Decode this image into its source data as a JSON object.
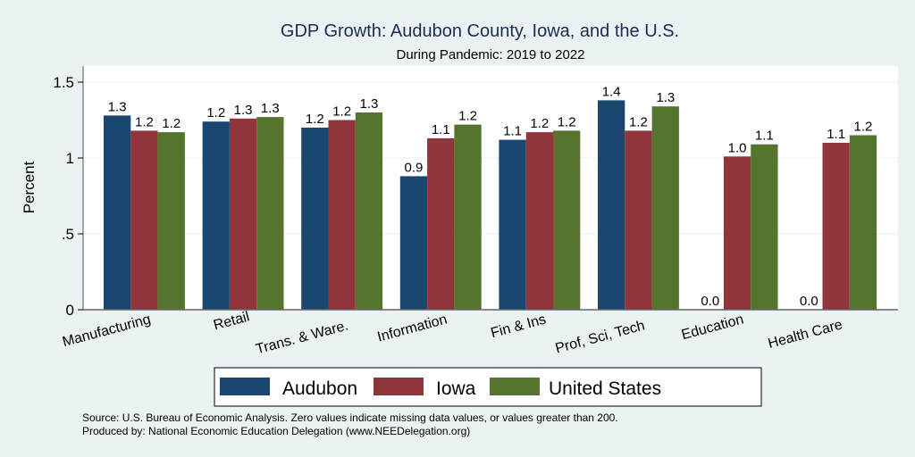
{
  "chart_data": {
    "type": "bar",
    "title": "GDP Growth: Audubon County, Iowa, and the U.S.",
    "subtitle": "During Pandemic: 2019 to 2022",
    "xlabel": "",
    "ylabel": "Percent",
    "ylim": [
      0,
      1.6
    ],
    "yticks": [
      0,
      0.5,
      1,
      1.5
    ],
    "ytick_labels": [
      "0",
      ".5",
      "1",
      "1.5"
    ],
    "grid": true,
    "legend_position": "bottom",
    "categories": [
      "Manufacturing",
      "Retail",
      "Trans. & Ware.",
      "Information",
      "Fin & Ins",
      "Prof, Sci, Tech",
      "Education",
      "Health Care"
    ],
    "series": [
      {
        "name": "Audubon",
        "color": "#1a476f",
        "values": [
          1.28,
          1.24,
          1.2,
          0.88,
          1.12,
          1.38,
          0.0,
          0.0
        ],
        "labels": [
          "1.3",
          "1.2",
          "1.2",
          "0.9",
          "1.1",
          "1.4",
          "0.0",
          "0.0"
        ]
      },
      {
        "name": "Iowa",
        "color": "#90353b",
        "values": [
          1.18,
          1.26,
          1.25,
          1.13,
          1.17,
          1.18,
          1.01,
          1.1
        ],
        "labels": [
          "1.2",
          "1.3",
          "1.2",
          "1.1",
          "1.2",
          "1.2",
          "1.0",
          "1.1"
        ]
      },
      {
        "name": "United States",
        "color": "#55752f",
        "values": [
          1.17,
          1.27,
          1.3,
          1.22,
          1.18,
          1.34,
          1.09,
          1.15
        ],
        "labels": [
          "1.2",
          "1.3",
          "1.3",
          "1.2",
          "1.2",
          "1.3",
          "1.1",
          "1.2"
        ]
      }
    ],
    "notes": [
      "Source: U.S. Bureau of Economic Analysis. Zero values indicate missing data values, or values greater than 200.",
      "Produced by: National Economic Education Delegation (www.NEEDelegation.org)"
    ]
  }
}
